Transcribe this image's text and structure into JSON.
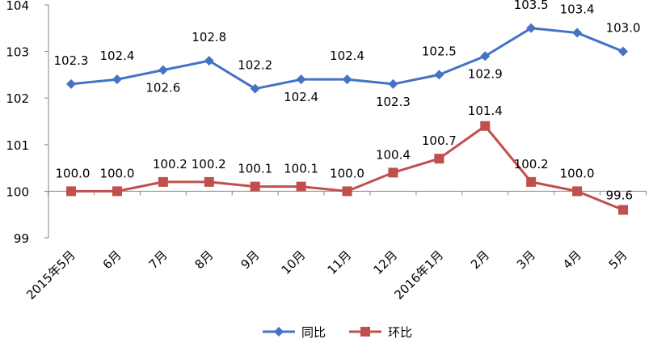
{
  "chart_data": {
    "type": "line",
    "categories": [
      "2015年5月",
      "6月",
      "7月",
      "8月",
      "9月",
      "10月",
      "11月",
      "12月",
      "2016年1月",
      "2月",
      "3月",
      "4月",
      "5月"
    ],
    "series": [
      {
        "name": "同比",
        "color": "#4472C4",
        "marker": "diamond",
        "values": [
          102.3,
          102.4,
          102.6,
          102.8,
          102.2,
          102.4,
          102.4,
          102.3,
          102.5,
          102.9,
          103.5,
          103.4,
          103.0
        ],
        "labels": [
          "102.3",
          "102.4",
          "102.6",
          "102.8",
          "102.2",
          "102.4",
          "102.4",
          "102.3",
          "102.5",
          "102.9",
          "103.5",
          "103.4",
          "103.0"
        ]
      },
      {
        "name": "环比",
        "color": "#C0504D",
        "marker": "square",
        "values": [
          100.0,
          100.0,
          100.2,
          100.2,
          100.1,
          100.1,
          100.0,
          100.4,
          100.7,
          101.4,
          100.2,
          100.0,
          99.6
        ],
        "labels": [
          "100.0",
          "100.0",
          "100.2",
          "100.2",
          "100.1",
          "100.1",
          "100.0",
          "100.4",
          "100.7",
          "101.4",
          "100.2",
          "100.0",
          "99.6"
        ]
      }
    ],
    "ylim": [
      99,
      104
    ],
    "yticks": [
      "99",
      "100",
      "101",
      "102",
      "103",
      "104"
    ],
    "grid": false,
    "legend_position": "bottom"
  }
}
